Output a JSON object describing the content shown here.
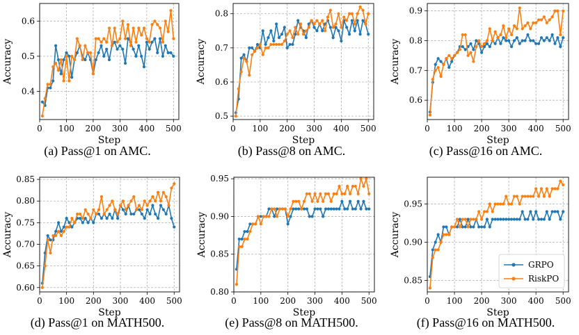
{
  "colors": {
    "GRPO": "#1f77b4",
    "RiskPO": "#ff7f0e",
    "grid": "#b0b0b0"
  },
  "legend": {
    "placement": "bottom-right",
    "panel": 5,
    "items": [
      "GRPO",
      "RiskPO"
    ]
  },
  "chart_data": [
    {
      "type": "line",
      "caption": "(a) Pass@1 on AMC.",
      "xlabel": "Step",
      "ylabel": "Accuracy",
      "xlim": [
        0,
        520
      ],
      "ylim": [
        0.32,
        0.65
      ],
      "xticks": [
        0,
        100,
        200,
        300,
        400,
        500
      ],
      "yticks": [
        "0.4",
        "0.5",
        "0.6"
      ],
      "grid": true,
      "x": [
        10,
        20,
        30,
        40,
        50,
        60,
        70,
        80,
        90,
        100,
        110,
        120,
        130,
        140,
        150,
        160,
        170,
        180,
        190,
        200,
        210,
        220,
        230,
        240,
        250,
        260,
        270,
        280,
        290,
        300,
        310,
        320,
        330,
        340,
        350,
        360,
        370,
        380,
        390,
        400,
        410,
        420,
        430,
        440,
        450,
        460,
        470,
        480,
        490,
        500
      ],
      "series": [
        {
          "name": "GRPO",
          "values": [
            0.37,
            0.36,
            0.41,
            0.41,
            0.43,
            0.53,
            0.49,
            0.45,
            0.49,
            0.51,
            0.5,
            0.44,
            0.49,
            0.51,
            0.53,
            0.5,
            0.49,
            0.51,
            0.49,
            0.45,
            0.49,
            0.51,
            0.53,
            0.5,
            0.52,
            0.49,
            0.53,
            0.54,
            0.52,
            0.53,
            0.52,
            0.48,
            0.55,
            0.54,
            0.52,
            0.5,
            0.53,
            0.5,
            0.47,
            0.54,
            0.52,
            0.54,
            0.55,
            0.51,
            0.55,
            0.5,
            0.53,
            0.51,
            0.51,
            0.5
          ]
        },
        {
          "name": "RiskPO",
          "values": [
            0.33,
            0.38,
            0.42,
            0.42,
            0.47,
            0.48,
            0.46,
            0.49,
            0.43,
            0.5,
            0.43,
            0.5,
            0.49,
            0.55,
            0.53,
            0.49,
            0.53,
            0.51,
            0.51,
            0.45,
            0.55,
            0.55,
            0.54,
            0.55,
            0.54,
            0.58,
            0.53,
            0.58,
            0.54,
            0.55,
            0.6,
            0.55,
            0.59,
            0.53,
            0.58,
            0.54,
            0.58,
            0.56,
            0.58,
            0.55,
            0.54,
            0.59,
            0.6,
            0.59,
            0.58,
            0.54,
            0.6,
            0.57,
            0.63,
            0.55
          ]
        }
      ]
    },
    {
      "type": "line",
      "caption": "(b) Pass@8 on AMC.",
      "xlabel": "Step",
      "ylabel": "Accuracy",
      "xlim": [
        0,
        520
      ],
      "ylim": [
        0.49,
        0.83
      ],
      "xticks": [
        0,
        100,
        200,
        300,
        400,
        500
      ],
      "yticks": [
        "0.5",
        "0.6",
        "0.7",
        "0.8"
      ],
      "grid": true,
      "x": [
        10,
        20,
        30,
        40,
        50,
        60,
        70,
        80,
        90,
        100,
        110,
        120,
        130,
        140,
        150,
        160,
        170,
        180,
        190,
        200,
        210,
        220,
        230,
        240,
        250,
        260,
        270,
        280,
        290,
        300,
        310,
        320,
        330,
        340,
        350,
        360,
        370,
        380,
        390,
        400,
        410,
        420,
        430,
        440,
        450,
        460,
        470,
        480,
        490,
        500
      ],
      "series": [
        {
          "name": "GRPO",
          "values": [
            0.51,
            0.55,
            0.67,
            0.68,
            0.66,
            0.7,
            0.7,
            0.69,
            0.71,
            0.7,
            0.75,
            0.71,
            0.73,
            0.75,
            0.72,
            0.77,
            0.73,
            0.74,
            0.76,
            0.7,
            0.71,
            0.71,
            0.74,
            0.78,
            0.76,
            0.75,
            0.73,
            0.77,
            0.78,
            0.76,
            0.75,
            0.77,
            0.75,
            0.77,
            0.78,
            0.76,
            0.73,
            0.76,
            0.75,
            0.72,
            0.78,
            0.76,
            0.74,
            0.78,
            0.75,
            0.78,
            0.74,
            0.78,
            0.77,
            0.74
          ]
        },
        {
          "name": "RiskPO",
          "values": [
            0.5,
            0.58,
            0.63,
            0.67,
            0.66,
            0.62,
            0.68,
            0.69,
            0.7,
            0.71,
            0.68,
            0.7,
            0.7,
            0.71,
            0.71,
            0.71,
            0.71,
            0.71,
            0.72,
            0.74,
            0.75,
            0.73,
            0.76,
            0.74,
            0.77,
            0.74,
            0.75,
            0.76,
            0.78,
            0.77,
            0.78,
            0.77,
            0.78,
            0.75,
            0.79,
            0.81,
            0.76,
            0.77,
            0.8,
            0.76,
            0.79,
            0.78,
            0.8,
            0.8,
            0.77,
            0.8,
            0.82,
            0.81,
            0.77,
            0.8
          ]
        }
      ]
    },
    {
      "type": "line",
      "caption": "(c) Pass@16 on AMC.",
      "xlabel": "Step",
      "ylabel": "Accuracy",
      "xlim": [
        0,
        520
      ],
      "ylim": [
        0.535,
        0.925
      ],
      "xticks": [
        0,
        100,
        200,
        300,
        400,
        500
      ],
      "yticks": [
        "0.6",
        "0.7",
        "0.8",
        "0.9"
      ],
      "grid": true,
      "x": [
        10,
        20,
        30,
        40,
        50,
        60,
        70,
        80,
        90,
        100,
        110,
        120,
        130,
        140,
        150,
        160,
        170,
        180,
        190,
        200,
        210,
        220,
        230,
        240,
        250,
        260,
        270,
        280,
        290,
        300,
        310,
        320,
        330,
        340,
        350,
        360,
        370,
        380,
        390,
        400,
        410,
        420,
        430,
        440,
        450,
        460,
        470,
        480,
        490,
        500
      ],
      "series": [
        {
          "name": "GRPO",
          "values": [
            0.56,
            0.66,
            0.72,
            0.74,
            0.73,
            0.72,
            0.74,
            0.71,
            0.73,
            0.75,
            0.76,
            0.78,
            0.78,
            0.77,
            0.78,
            0.79,
            0.77,
            0.8,
            0.79,
            0.76,
            0.78,
            0.79,
            0.78,
            0.8,
            0.79,
            0.81,
            0.79,
            0.81,
            0.8,
            0.8,
            0.78,
            0.8,
            0.81,
            0.79,
            0.8,
            0.8,
            0.82,
            0.8,
            0.8,
            0.79,
            0.79,
            0.81,
            0.8,
            0.81,
            0.8,
            0.82,
            0.79,
            0.81,
            0.78,
            0.81
          ]
        },
        {
          "name": "RiskPO",
          "values": [
            0.55,
            0.67,
            0.7,
            0.71,
            0.68,
            0.72,
            0.74,
            0.75,
            0.74,
            0.75,
            0.76,
            0.77,
            0.82,
            0.82,
            0.75,
            0.76,
            0.73,
            0.78,
            0.8,
            0.78,
            0.79,
            0.8,
            0.84,
            0.8,
            0.83,
            0.81,
            0.82,
            0.85,
            0.81,
            0.84,
            0.82,
            0.85,
            0.84,
            0.91,
            0.84,
            0.85,
            0.86,
            0.84,
            0.86,
            0.86,
            0.87,
            0.87,
            0.88,
            0.86,
            0.87,
            0.88,
            0.9,
            0.9,
            0.82,
            0.9
          ]
        }
      ]
    },
    {
      "type": "line",
      "caption": "(d) Pass@1 on MATH500.",
      "xlabel": "Step",
      "ylabel": "Accuracy",
      "xlim": [
        0,
        520
      ],
      "ylim": [
        0.59,
        0.855
      ],
      "xticks": [
        0,
        100,
        200,
        300,
        400,
        500
      ],
      "yticks": [
        "0.60",
        "0.65",
        "0.70",
        "0.75",
        "0.80",
        "0.85"
      ],
      "grid": true,
      "x": [
        10,
        20,
        30,
        40,
        50,
        60,
        70,
        80,
        90,
        100,
        110,
        120,
        130,
        140,
        150,
        160,
        170,
        180,
        190,
        200,
        210,
        220,
        230,
        240,
        250,
        260,
        270,
        280,
        290,
        300,
        310,
        320,
        330,
        340,
        350,
        360,
        370,
        380,
        390,
        400,
        410,
        420,
        430,
        440,
        450,
        460,
        470,
        480,
        490,
        500
      ],
      "series": [
        {
          "name": "GRPO",
          "values": [
            0.61,
            0.68,
            0.72,
            0.71,
            0.71,
            0.73,
            0.75,
            0.73,
            0.74,
            0.76,
            0.75,
            0.74,
            0.75,
            0.76,
            0.76,
            0.75,
            0.76,
            0.75,
            0.76,
            0.75,
            0.77,
            0.77,
            0.76,
            0.77,
            0.76,
            0.77,
            0.76,
            0.78,
            0.76,
            0.79,
            0.78,
            0.77,
            0.79,
            0.77,
            0.77,
            0.78,
            0.78,
            0.77,
            0.76,
            0.78,
            0.77,
            0.79,
            0.77,
            0.76,
            0.79,
            0.78,
            0.77,
            0.79,
            0.76,
            0.74
          ]
        },
        {
          "name": "RiskPO",
          "values": [
            0.6,
            0.65,
            0.71,
            0.68,
            0.72,
            0.72,
            0.73,
            0.72,
            0.73,
            0.74,
            0.74,
            0.76,
            0.75,
            0.77,
            0.77,
            0.76,
            0.78,
            0.77,
            0.76,
            0.78,
            0.77,
            0.78,
            0.81,
            0.77,
            0.78,
            0.79,
            0.8,
            0.78,
            0.77,
            0.79,
            0.8,
            0.78,
            0.79,
            0.8,
            0.81,
            0.78,
            0.79,
            0.78,
            0.8,
            0.79,
            0.8,
            0.81,
            0.8,
            0.82,
            0.8,
            0.82,
            0.81,
            0.79,
            0.83,
            0.84
          ]
        }
      ]
    },
    {
      "type": "line",
      "caption": "(e) Pass@8 on MATH500.",
      "xlabel": "Step",
      "ylabel": "Accuracy",
      "xlim": [
        0,
        520
      ],
      "ylim": [
        0.8,
        0.952
      ],
      "xticks": [
        0,
        100,
        200,
        300,
        400,
        500
      ],
      "yticks": [
        "0.80",
        "0.85",
        "0.90",
        "0.95"
      ],
      "grid": true,
      "x": [
        10,
        20,
        30,
        40,
        50,
        60,
        70,
        80,
        90,
        100,
        110,
        120,
        130,
        140,
        150,
        160,
        170,
        180,
        190,
        200,
        210,
        220,
        230,
        240,
        250,
        260,
        270,
        280,
        290,
        300,
        310,
        320,
        330,
        340,
        350,
        360,
        370,
        380,
        390,
        400,
        410,
        420,
        430,
        440,
        450,
        460,
        470,
        480,
        490,
        500
      ],
      "series": [
        {
          "name": "GRPO",
          "values": [
            0.83,
            0.87,
            0.87,
            0.88,
            0.88,
            0.89,
            0.89,
            0.89,
            0.9,
            0.9,
            0.9,
            0.9,
            0.91,
            0.91,
            0.9,
            0.91,
            0.91,
            0.91,
            0.91,
            0.89,
            0.9,
            0.91,
            0.91,
            0.91,
            0.91,
            0.91,
            0.91,
            0.9,
            0.9,
            0.91,
            0.91,
            0.91,
            0.9,
            0.91,
            0.91,
            0.91,
            0.91,
            0.91,
            0.91,
            0.92,
            0.91,
            0.91,
            0.92,
            0.91,
            0.91,
            0.92,
            0.91,
            0.92,
            0.91,
            0.91
          ]
        },
        {
          "name": "RiskPO",
          "values": [
            0.81,
            0.86,
            0.86,
            0.87,
            0.87,
            0.88,
            0.89,
            0.89,
            0.9,
            0.89,
            0.9,
            0.9,
            0.9,
            0.91,
            0.91,
            0.9,
            0.91,
            0.91,
            0.91,
            0.9,
            0.91,
            0.92,
            0.92,
            0.92,
            0.91,
            0.92,
            0.93,
            0.93,
            0.92,
            0.93,
            0.92,
            0.93,
            0.92,
            0.93,
            0.93,
            0.92,
            0.93,
            0.93,
            0.94,
            0.93,
            0.93,
            0.94,
            0.93,
            0.94,
            0.94,
            0.93,
            0.95,
            0.94,
            0.95,
            0.93
          ]
        }
      ]
    },
    {
      "type": "line",
      "caption": "(f) Pass@16 on MATH500.",
      "xlabel": "Step",
      "ylabel": "Accuracy",
      "xlim": [
        0,
        520
      ],
      "ylim": [
        0.835,
        0.985
      ],
      "xticks": [
        0,
        100,
        200,
        300,
        400,
        500
      ],
      "yticks": [
        "0.85",
        "0.90",
        "0.95"
      ],
      "grid": true,
      "x": [
        10,
        20,
        30,
        40,
        50,
        60,
        70,
        80,
        90,
        100,
        110,
        120,
        130,
        140,
        150,
        160,
        170,
        180,
        190,
        200,
        210,
        220,
        230,
        240,
        250,
        260,
        270,
        280,
        290,
        300,
        310,
        320,
        330,
        340,
        350,
        360,
        370,
        380,
        390,
        400,
        410,
        420,
        430,
        440,
        450,
        460,
        470,
        480,
        490,
        500
      ],
      "series": [
        {
          "name": "GRPO",
          "values": [
            0.855,
            0.89,
            0.9,
            0.91,
            0.9,
            0.92,
            0.92,
            0.91,
            0.92,
            0.92,
            0.92,
            0.93,
            0.92,
            0.92,
            0.93,
            0.92,
            0.92,
            0.93,
            0.92,
            0.92,
            0.92,
            0.93,
            0.92,
            0.93,
            0.93,
            0.93,
            0.93,
            0.93,
            0.93,
            0.93,
            0.93,
            0.93,
            0.93,
            0.93,
            0.94,
            0.93,
            0.93,
            0.94,
            0.93,
            0.94,
            0.93,
            0.93,
            0.93,
            0.94,
            0.93,
            0.94,
            0.94,
            0.94,
            0.93,
            0.94
          ]
        },
        {
          "name": "RiskPO",
          "values": [
            0.84,
            0.88,
            0.89,
            0.89,
            0.9,
            0.91,
            0.91,
            0.91,
            0.92,
            0.92,
            0.93,
            0.92,
            0.93,
            0.93,
            0.92,
            0.93,
            0.93,
            0.93,
            0.94,
            0.93,
            0.94,
            0.94,
            0.95,
            0.94,
            0.95,
            0.95,
            0.95,
            0.95,
            0.96,
            0.95,
            0.95,
            0.96,
            0.96,
            0.95,
            0.96,
            0.96,
            0.96,
            0.96,
            0.96,
            0.97,
            0.96,
            0.97,
            0.96,
            0.97,
            0.96,
            0.97,
            0.97,
            0.97,
            0.98,
            0.975
          ]
        }
      ]
    }
  ]
}
